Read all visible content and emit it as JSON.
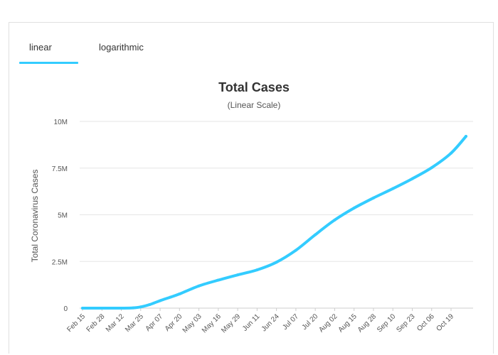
{
  "tabs": [
    {
      "label": "linear",
      "active": true
    },
    {
      "label": "logarithmic",
      "active": false
    }
  ],
  "colors": {
    "accent": "#33ccff",
    "line": "#33ccff",
    "grid": "#e6e6e6"
  },
  "chart_data": {
    "type": "line",
    "title": "Total Cases",
    "subtitle": "(Linear Scale)",
    "ylabel": "Total Coronavirus Cases",
    "xlabel": "",
    "ylim": [
      0,
      10000000
    ],
    "ytick_values": [
      0,
      2500000,
      5000000,
      7500000,
      10000000
    ],
    "ytick_labels": [
      "0",
      "2.5M",
      "5M",
      "7.5M",
      "10M"
    ],
    "x_tick_labels": [
      "Feb 15",
      "Feb 28",
      "Mar 12",
      "Mar 25",
      "Apr 07",
      "Apr 20",
      "May 03",
      "May 16",
      "May 29",
      "Jun 11",
      "Jun 24",
      "Jul 07",
      "Jul 20",
      "Aug 02",
      "Aug 15",
      "Aug 28",
      "Sep 10",
      "Sep 23",
      "Oct 06",
      "Oct 19"
    ],
    "grid": true,
    "series": [
      {
        "x": [
          "Feb 15",
          "Feb 28",
          "Mar 12",
          "Mar 20",
          "Mar 25",
          "Mar 31",
          "Apr 07",
          "Apr 14",
          "Apr 20",
          "May 03",
          "May 16",
          "May 29",
          "Jun 11",
          "Jun 24",
          "Jul 07",
          "Jul 20",
          "Aug 02",
          "Aug 15",
          "Aug 28",
          "Sep 10",
          "Sep 23",
          "Oct 06",
          "Oct 19",
          "Oct 29"
        ],
        "values": [
          15,
          60,
          1600,
          16000,
          65000,
          190000,
          400000,
          590000,
          760000,
          1190000,
          1500000,
          1780000,
          2050000,
          2460000,
          3100000,
          3930000,
          4720000,
          5360000,
          5900000,
          6400000,
          6930000,
          7520000,
          8300000,
          9200000
        ]
      }
    ]
  }
}
